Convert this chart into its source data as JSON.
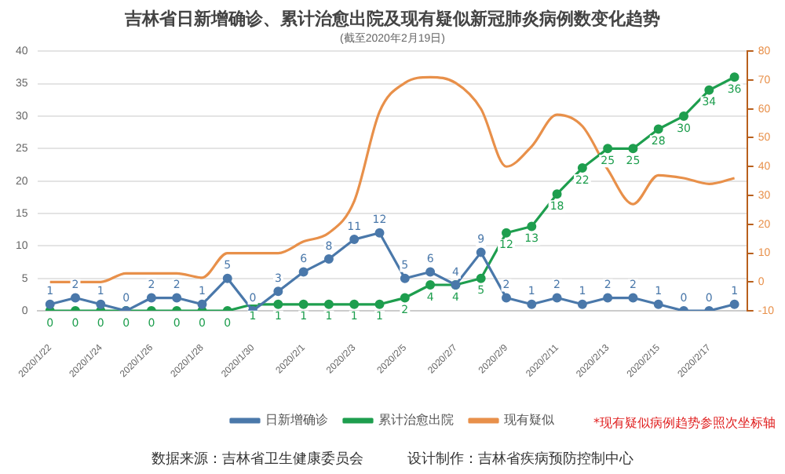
{
  "chart_data": {
    "type": "line",
    "title": "吉林省日新增确诊、累计治愈出院及现有疑似新冠肺炎病例数变化趋势",
    "subtitle": "(截至2020年2月19日)",
    "categories": [
      "2020/1/22",
      null,
      "2020/1/24",
      null,
      "2020/1/26",
      null,
      "2020/1/28",
      null,
      "2020/1/30",
      null,
      "2020/2/1",
      null,
      "2020/2/3",
      null,
      "2020/2/5",
      null,
      "2020/2/7",
      null,
      "2020/2/9",
      null,
      "2020/2/11",
      null,
      "2020/2/13",
      null,
      "2020/2/15",
      null,
      "2020/2/17",
      null
    ],
    "series": [
      {
        "name": "日新增确诊",
        "color": "#4a78aa",
        "marker": "circle",
        "values": [
          1,
          2,
          1,
          0,
          2,
          2,
          1,
          5,
          0,
          3,
          6,
          8,
          11,
          12,
          5,
          6,
          4,
          9,
          2,
          1,
          2,
          1,
          2,
          2,
          1,
          0,
          0,
          1
        ],
        "value_labels": [
          "1",
          "2",
          "1",
          "0",
          "2",
          "2",
          "1",
          "5",
          "0",
          "3",
          "6",
          "8",
          "11",
          "12",
          "5",
          "6",
          "4",
          "9",
          "2",
          "1",
          "2",
          "1",
          "2",
          "2",
          "1",
          "0",
          "0",
          "1"
        ]
      },
      {
        "name": "累计治愈出院",
        "color": "#1e9e4e",
        "marker": "circle",
        "values": [
          0,
          0,
          0,
          0,
          0,
          0,
          0,
          0,
          1,
          1,
          1,
          1,
          1,
          1,
          2,
          4,
          4,
          5,
          12,
          13,
          18,
          22,
          25,
          25,
          28,
          30,
          34,
          36
        ],
        "value_labels": [
          "0",
          "0",
          "0",
          "0",
          "0",
          "0",
          "0",
          "0",
          "1",
          "1",
          "1",
          "1",
          "1",
          "1",
          "2",
          "4",
          "4",
          "5",
          "12",
          "13",
          "18",
          "22",
          "25",
          "25",
          "28",
          "30",
          "34",
          "36"
        ]
      },
      {
        "name": "现有疑似",
        "color": "#e8904a",
        "marker": "none",
        "axis": "y2",
        "values": [
          0,
          0,
          0,
          3,
          3,
          3,
          1.5,
          10,
          10,
          10,
          14,
          17,
          28,
          59,
          69,
          71,
          69,
          60,
          40,
          47,
          58,
          54,
          39,
          27,
          37,
          36,
          34,
          36
        ]
      }
    ],
    "ylim": [
      0,
      40
    ],
    "yticks": [
      0,
      5,
      10,
      15,
      20,
      25,
      30,
      35,
      40
    ],
    "y2lim": [
      -10,
      80
    ],
    "y2ticks": [
      -10,
      0,
      10,
      20,
      30,
      40,
      50,
      60,
      70,
      80
    ],
    "grid": "y",
    "legend": "bottom",
    "annotations": [
      "*现有疑似病例趋势参照次坐标轴",
      "数据来源：吉林省卫生健康委员会",
      "设计制作：吉林省疾病预防控制中心"
    ]
  }
}
